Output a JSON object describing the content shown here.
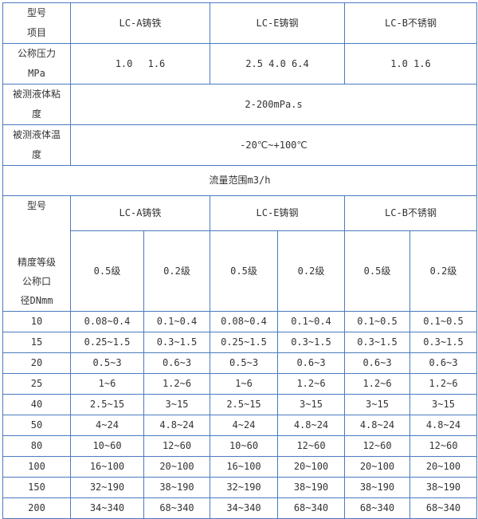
{
  "spec_table": {
    "header": {
      "row_label": [
        "型号",
        "项目"
      ],
      "models": [
        "LC-A铸铁",
        "LC-E铸钢",
        "LC-B不锈钢"
      ]
    },
    "pressure": {
      "label": [
        "公称压力",
        "MPa"
      ],
      "values": [
        "1.0　 1.6",
        "2.5 4.0 6.4",
        "1.0 1.6"
      ]
    },
    "viscosity": {
      "label": [
        "被测液体粘",
        "度"
      ],
      "value": "2-200mPa.s"
    },
    "temperature": {
      "label": [
        "被测液体温",
        "度"
      ],
      "value": "-20℃~+100℃"
    },
    "flow_title": "流量范围m3/h"
  },
  "flow_table": {
    "corner": {
      "top": "型号",
      "bottom": [
        "精度等级",
        "公称口",
        "径DNmm"
      ]
    },
    "models": [
      "LC-A铸铁",
      "LC-E铸钢",
      "LC-B不锈钢"
    ],
    "grades": [
      "0.5级",
      "0.2级",
      "0.5级",
      "0.2级",
      "0.5级",
      "0.2级"
    ],
    "rows": [
      [
        "10",
        "0.08~0.4",
        "0.1~0.4",
        "0.08~0.4",
        "0.1~0.4",
        "0.1~0.5",
        "0.1~0.5"
      ],
      [
        "15",
        "0.25~1.5",
        "0.3~1.5",
        "0.25~1.5",
        "0.3~1.5",
        "0.3~1.5",
        "0.3~1.5"
      ],
      [
        "20",
        "0.5~3",
        "0.6~3",
        "0.5~3",
        "0.6~3",
        "0.6~3",
        "0.6~3"
      ],
      [
        "25",
        "1~6",
        "1.2~6",
        "1~6",
        "1.2~6",
        "1.2~6",
        "1.2~6"
      ],
      [
        "40",
        "2.5~15",
        "3~15",
        "2.5~15",
        "3~15",
        "3~15",
        "3~15"
      ],
      [
        "50",
        "4~24",
        "4.8~24",
        "4~24",
        "4.8~24",
        "4.8~24",
        "4.8~24"
      ],
      [
        "80",
        "10~60",
        "12~60",
        "10~60",
        "12~60",
        "12~60",
        "12~60"
      ],
      [
        "100",
        "16~100",
        "20~100",
        "16~100",
        "20~100",
        "20~100",
        "20~100"
      ],
      [
        "150",
        "32~190",
        "38~190",
        "32~190",
        "38~190",
        "38~190",
        "38~190"
      ],
      [
        "200",
        "34~340",
        "68~340",
        "34~340",
        "68~340",
        "68~340",
        "68~340"
      ]
    ]
  }
}
